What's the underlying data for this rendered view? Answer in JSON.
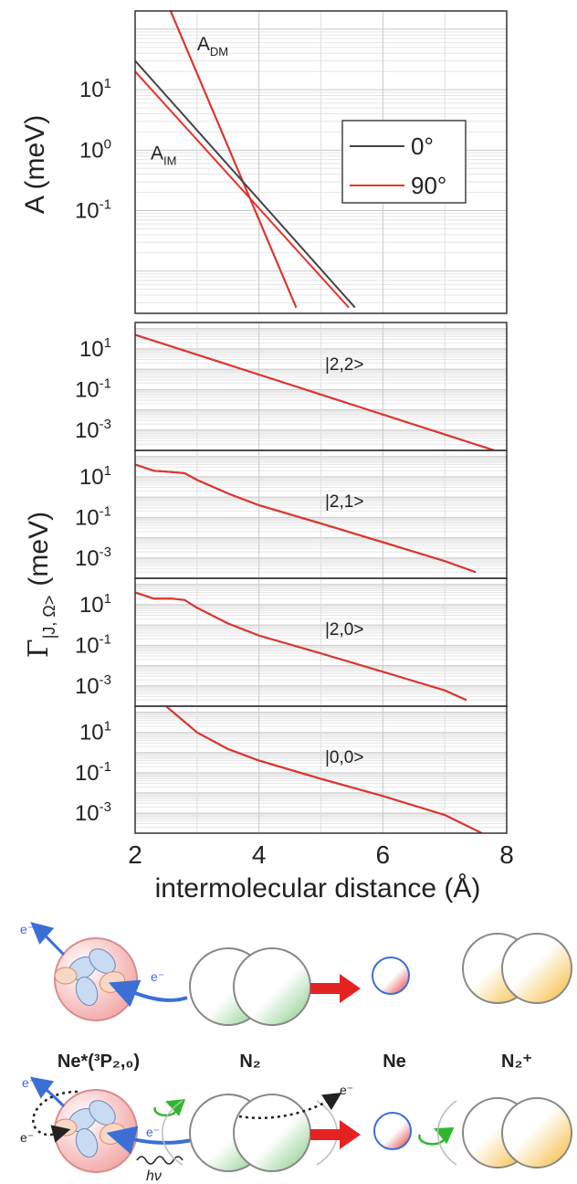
{
  "chart_data": [
    {
      "type": "line",
      "ylabel": "A  (meV)",
      "yscale": "log",
      "xlim": [
        2,
        8
      ],
      "ylim": [
        0.002,
        200
      ],
      "yticks": [
        {
          "v": 10,
          "t": "10",
          "e": "1"
        },
        {
          "v": 1,
          "t": "10",
          "e": "0"
        },
        {
          "v": 0.1,
          "t": "10",
          "e": "-1"
        }
      ],
      "grid": true,
      "legend": {
        "position": "right",
        "entries": [
          {
            "label": "0°",
            "color": "#444444"
          },
          {
            "label": "90°",
            "color": "#e8332a"
          }
        ]
      },
      "annotations": [
        {
          "main": "A",
          "sub": "DM",
          "x": 3.0,
          "y": 45
        },
        {
          "main": "A",
          "sub": "IM",
          "x": 2.25,
          "y": 0.7
        }
      ],
      "series": [
        {
          "name": "A_DM 0°",
          "color": "#444444",
          "x": [
            2.5,
            4.6
          ],
          "y": [
            300,
            0.0025
          ]
        },
        {
          "name": "A_DM 90°",
          "color": "#e8332a",
          "x": [
            2.5,
            4.6
          ],
          "y": [
            300,
            0.0025
          ]
        },
        {
          "name": "A_IM 0°",
          "color": "#444444",
          "x": [
            2.0,
            5.55
          ],
          "y": [
            30,
            0.0025
          ]
        },
        {
          "name": "A_IM 90°",
          "color": "#e8332a",
          "x": [
            2.0,
            5.45
          ],
          "y": [
            20,
            0.0025
          ]
        }
      ]
    },
    {
      "type": "line",
      "label": "|2,2>",
      "yscale": "log",
      "xlim": [
        2,
        8
      ],
      "ylim": [
        0.0001,
        200
      ],
      "yticks": [
        {
          "v": 10,
          "t": "10",
          "e": "1"
        },
        {
          "v": 0.1,
          "t": "10",
          "e": "-1"
        },
        {
          "v": 0.001,
          "t": "10",
          "e": "-3"
        }
      ],
      "series": [
        {
          "name": "0°",
          "color": "#222222",
          "x": [
            2.0,
            7.8
          ],
          "y": [
            50,
            0.0001
          ]
        },
        {
          "name": "90°",
          "color": "#e8332a",
          "x": [
            2.0,
            7.8
          ],
          "y": [
            50,
            0.0001
          ]
        }
      ]
    },
    {
      "type": "line",
      "label": "|2,1>",
      "yscale": "log",
      "xlim": [
        2,
        8
      ],
      "ylim": [
        0.0001,
        200
      ],
      "yticks": [
        {
          "v": 10,
          "t": "10",
          "e": "1"
        },
        {
          "v": 0.1,
          "t": "10",
          "e": "-1"
        },
        {
          "v": 0.001,
          "t": "10",
          "e": "-3"
        }
      ],
      "series": [
        {
          "name": "0°",
          "color": "#222222",
          "x": [
            2.0,
            2.3,
            2.6,
            2.8,
            3.0,
            3.5,
            4.0,
            5.0,
            6.0,
            7.0,
            7.5
          ],
          "y": [
            40,
            20,
            17,
            15,
            7,
            1.5,
            0.4,
            0.05,
            0.006,
            0.0007,
            0.0002
          ]
        },
        {
          "name": "90°",
          "color": "#e8332a",
          "x": [
            2.0,
            2.3,
            2.6,
            2.8,
            3.0,
            3.5,
            4.0,
            5.0,
            6.0,
            7.0,
            7.5
          ],
          "y": [
            40,
            20,
            17,
            15,
            7,
            1.5,
            0.4,
            0.05,
            0.006,
            0.0007,
            0.0002
          ]
        }
      ]
    },
    {
      "type": "line",
      "label": "|2,0>",
      "yscale": "log",
      "xlim": [
        2,
        8
      ],
      "ylim": [
        0.0001,
        200
      ],
      "yticks": [
        {
          "v": 10,
          "t": "10",
          "e": "1"
        },
        {
          "v": 0.1,
          "t": "10",
          "e": "-1"
        },
        {
          "v": 0.001,
          "t": "10",
          "e": "-3"
        }
      ],
      "series": [
        {
          "name": "0°",
          "color": "#222222",
          "x": [
            2.0,
            2.3,
            2.6,
            2.8,
            3.0,
            3.5,
            4.0,
            5.0,
            6.0,
            7.0,
            7.35
          ],
          "y": [
            40,
            20,
            20,
            17,
            7,
            1.2,
            0.3,
            0.04,
            0.005,
            0.0006,
            0.0002
          ]
        },
        {
          "name": "90°",
          "color": "#e8332a",
          "x": [
            2.0,
            2.3,
            2.6,
            2.8,
            3.0,
            3.5,
            4.0,
            5.0,
            6.0,
            7.0,
            7.35
          ],
          "y": [
            40,
            20,
            20,
            17,
            7,
            1.2,
            0.3,
            0.04,
            0.005,
            0.0006,
            0.0002
          ]
        }
      ]
    },
    {
      "type": "line",
      "label": "|0,0>",
      "yscale": "log",
      "xlim": [
        2,
        8
      ],
      "ylim": [
        0.0001,
        200
      ],
      "xticks": [
        2,
        4,
        6,
        8
      ],
      "xlabel": "intermolecular distance (Å)",
      "yticks": [
        {
          "v": 10,
          "t": "10",
          "e": "1"
        },
        {
          "v": 0.1,
          "t": "10",
          "e": "-1"
        },
        {
          "v": 0.001,
          "t": "10",
          "e": "-3"
        }
      ],
      "series": [
        {
          "name": "0°",
          "color": "#222222",
          "x": [
            2.5,
            3.0,
            3.5,
            4.0,
            5.0,
            6.0,
            7.0,
            7.6
          ],
          "y": [
            200,
            10,
            1.5,
            0.4,
            0.05,
            0.007,
            0.0008,
            0.0001
          ]
        },
        {
          "name": "90°",
          "color": "#e8332a",
          "x": [
            2.5,
            3.0,
            3.5,
            4.0,
            5.0,
            6.0,
            7.0,
            7.6
          ],
          "y": [
            200,
            10,
            1.5,
            0.4,
            0.05,
            0.007,
            0.0008,
            0.0001
          ]
        }
      ]
    }
  ],
  "shared_ylabel": {
    "main": "Γ",
    "sub": "|J, Ω>",
    "unit": "(meV)"
  },
  "diagram": {
    "labels": {
      "ne_star": "Ne*(³P₂,₀)",
      "n2": "N₂",
      "ne": "Ne",
      "n2_plus": "N₂⁺"
    },
    "electron": "e⁻",
    "photon": "hν",
    "colors": {
      "green": "#7fc97f",
      "orange": "#f5b82e",
      "red": "#e53030",
      "blue": "#3b6fd6",
      "pink": "#f4b8b8"
    }
  }
}
